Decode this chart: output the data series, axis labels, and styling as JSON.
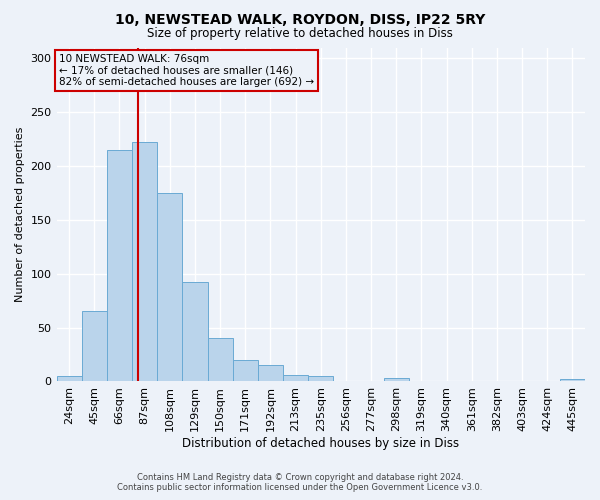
{
  "title": "10, NEWSTEAD WALK, ROYDON, DISS, IP22 5RY",
  "subtitle": "Size of property relative to detached houses in Diss",
  "xlabel": "Distribution of detached houses by size in Diss",
  "ylabel": "Number of detached properties",
  "footer_line1": "Contains HM Land Registry data © Crown copyright and database right 2024.",
  "footer_line2": "Contains public sector information licensed under the Open Government Licence v3.0.",
  "annotation_line1": "10 NEWSTEAD WALK: 76sqm",
  "annotation_line2": "← 17% of detached houses are smaller (146)",
  "annotation_line3": "82% of semi-detached houses are larger (692) →",
  "property_size_bin": 2.75,
  "bar_color": "#bad4eb",
  "bar_edge_color": "#6aaad4",
  "vline_color": "#cc0000",
  "background_color": "#edf2f9",
  "grid_color": "#ffffff",
  "categories": [
    "24sqm",
    "45sqm",
    "66sqm",
    "87sqm",
    "108sqm",
    "129sqm",
    "150sqm",
    "171sqm",
    "192sqm",
    "213sqm",
    "235sqm",
    "256sqm",
    "277sqm",
    "298sqm",
    "319sqm",
    "340sqm",
    "361sqm",
    "382sqm",
    "403sqm",
    "424sqm",
    "445sqm"
  ],
  "values": [
    5,
    65,
    215,
    222,
    175,
    92,
    40,
    20,
    15,
    6,
    5,
    0,
    0,
    3,
    0,
    0,
    0,
    0,
    0,
    0,
    2
  ],
  "ylim": [
    0,
    310
  ],
  "yticks": [
    0,
    50,
    100,
    150,
    200,
    250,
    300
  ]
}
